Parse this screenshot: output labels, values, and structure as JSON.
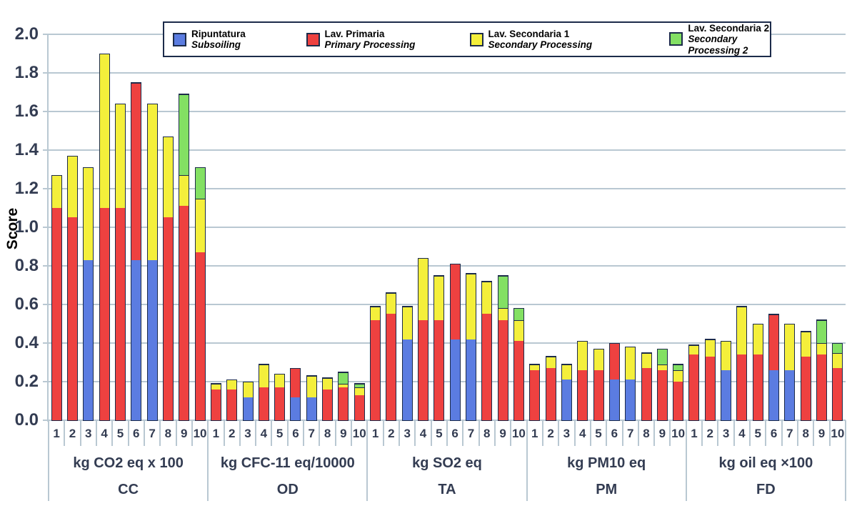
{
  "chart_data": {
    "type": "bar",
    "stacked": true,
    "title": "",
    "ylabel": "Score",
    "ylim": [
      0,
      2.0
    ],
    "ytick_step": 0.2,
    "grid": "horizontal",
    "legend_position": "top",
    "colors": {
      "subsoiling": "#5b7ce1",
      "primary": "#ee4140",
      "secondary1": "#f4ef3b",
      "secondary2": "#83e063",
      "outline": "#1c2b4a",
      "gridline": "#b9c8d2",
      "text": "#333c52"
    },
    "series_meta": [
      {
        "key": "subsoiling",
        "label_it": "Ripuntatura",
        "label_en": "Subsoiling",
        "color": "#5b7ce1"
      },
      {
        "key": "primary",
        "label_it": "Lav. Primaria",
        "label_en": "Primary Processing",
        "color": "#ee4140"
      },
      {
        "key": "secondary1",
        "label_it": "Lav. Secondaria 1",
        "label_en": "Secondary Processing",
        "color": "#f4ef3b"
      },
      {
        "key": "secondary2",
        "label_it": "Lav. Secondaria 2",
        "label_en": "Secondary Processing 2",
        "color": "#83e063"
      }
    ],
    "categories": [
      "1",
      "2",
      "3",
      "4",
      "5",
      "6",
      "7",
      "8",
      "9",
      "10"
    ],
    "groups": [
      {
        "code": "CC",
        "unit": "kg CO2 eq x 100",
        "bars": [
          {
            "label": "1",
            "values": [
              0,
              1.1,
              0.17,
              0
            ]
          },
          {
            "label": "2",
            "values": [
              0,
              1.05,
              0.32,
              0
            ]
          },
          {
            "label": "3",
            "values": [
              0.83,
              0,
              0.48,
              0
            ]
          },
          {
            "label": "4",
            "values": [
              0,
              1.1,
              0.8,
              0
            ]
          },
          {
            "label": "5",
            "values": [
              0,
              1.1,
              0.54,
              0
            ]
          },
          {
            "label": "6",
            "values": [
              0.83,
              0.92,
              0,
              0
            ]
          },
          {
            "label": "7",
            "values": [
              0.83,
              0,
              0.81,
              0
            ]
          },
          {
            "label": "8",
            "values": [
              0,
              1.05,
              0.42,
              0
            ]
          },
          {
            "label": "9",
            "values": [
              0,
              1.11,
              0.16,
              0.42
            ]
          },
          {
            "label": "10",
            "values": [
              0,
              0.87,
              0.28,
              0.16
            ]
          }
        ]
      },
      {
        "code": "OD",
        "unit": "kg CFC-11 eq/10000",
        "bars": [
          {
            "label": "1",
            "values": [
              0,
              0.16,
              0.03,
              0
            ]
          },
          {
            "label": "2",
            "values": [
              0,
              0.16,
              0.05,
              0
            ]
          },
          {
            "label": "3",
            "values": [
              0.12,
              0,
              0.08,
              0
            ]
          },
          {
            "label": "4",
            "values": [
              0,
              0.17,
              0.12,
              0
            ]
          },
          {
            "label": "5",
            "values": [
              0,
              0.17,
              0.07,
              0
            ]
          },
          {
            "label": "6",
            "values": [
              0.12,
              0.15,
              0,
              0
            ]
          },
          {
            "label": "7",
            "values": [
              0.12,
              0,
              0.11,
              0
            ]
          },
          {
            "label": "8",
            "values": [
              0,
              0.16,
              0.06,
              0
            ]
          },
          {
            "label": "9",
            "values": [
              0,
              0.17,
              0.02,
              0.06
            ]
          },
          {
            "label": "10",
            "values": [
              0,
              0.13,
              0.04,
              0.02
            ]
          }
        ]
      },
      {
        "code": "TA",
        "unit": "kg SO2 eq",
        "bars": [
          {
            "label": "1",
            "values": [
              0,
              0.52,
              0.07,
              0
            ]
          },
          {
            "label": "2",
            "values": [
              0,
              0.55,
              0.11,
              0
            ]
          },
          {
            "label": "3",
            "values": [
              0.42,
              0,
              0.17,
              0
            ]
          },
          {
            "label": "4",
            "values": [
              0,
              0.52,
              0.32,
              0
            ]
          },
          {
            "label": "5",
            "values": [
              0,
              0.52,
              0.23,
              0
            ]
          },
          {
            "label": "6",
            "values": [
              0.42,
              0.39,
              0,
              0
            ]
          },
          {
            "label": "7",
            "values": [
              0.42,
              0,
              0.34,
              0
            ]
          },
          {
            "label": "8",
            "values": [
              0,
              0.55,
              0.17,
              0
            ]
          },
          {
            "label": "9",
            "values": [
              0,
              0.52,
              0.06,
              0.17
            ]
          },
          {
            "label": "10",
            "values": [
              0,
              0.41,
              0.11,
              0.06
            ]
          }
        ]
      },
      {
        "code": "PM",
        "unit": "kg PM10 eq",
        "bars": [
          {
            "label": "1",
            "values": [
              0,
              0.26,
              0.03,
              0
            ]
          },
          {
            "label": "2",
            "values": [
              0,
              0.27,
              0.06,
              0
            ]
          },
          {
            "label": "3",
            "values": [
              0.21,
              0,
              0.08,
              0
            ]
          },
          {
            "label": "4",
            "values": [
              0,
              0.26,
              0.15,
              0
            ]
          },
          {
            "label": "5",
            "values": [
              0,
              0.26,
              0.11,
              0
            ]
          },
          {
            "label": "6",
            "values": [
              0.21,
              0.19,
              0,
              0
            ]
          },
          {
            "label": "7",
            "values": [
              0.21,
              0,
              0.17,
              0
            ]
          },
          {
            "label": "8",
            "values": [
              0,
              0.27,
              0.08,
              0
            ]
          },
          {
            "label": "9",
            "values": [
              0,
              0.26,
              0.03,
              0.08
            ]
          },
          {
            "label": "10",
            "values": [
              0,
              0.2,
              0.06,
              0.03
            ]
          }
        ]
      },
      {
        "code": "FD",
        "unit": "kg oil eq ×100",
        "bars": [
          {
            "label": "1",
            "values": [
              0,
              0.34,
              0.05,
              0
            ]
          },
          {
            "label": "2",
            "values": [
              0,
              0.33,
              0.09,
              0
            ]
          },
          {
            "label": "3",
            "values": [
              0.26,
              0,
              0.15,
              0
            ]
          },
          {
            "label": "4",
            "values": [
              0,
              0.34,
              0.25,
              0
            ]
          },
          {
            "label": "5",
            "values": [
              0,
              0.34,
              0.16,
              0
            ]
          },
          {
            "label": "6",
            "values": [
              0.26,
              0.29,
              0,
              0
            ]
          },
          {
            "label": "7",
            "values": [
              0.26,
              0,
              0.24,
              0
            ]
          },
          {
            "label": "8",
            "values": [
              0,
              0.33,
              0.13,
              0
            ]
          },
          {
            "label": "9",
            "values": [
              0,
              0.34,
              0.06,
              0.12
            ]
          },
          {
            "label": "10",
            "values": [
              0,
              0.27,
              0.08,
              0.05
            ]
          }
        ]
      }
    ]
  }
}
